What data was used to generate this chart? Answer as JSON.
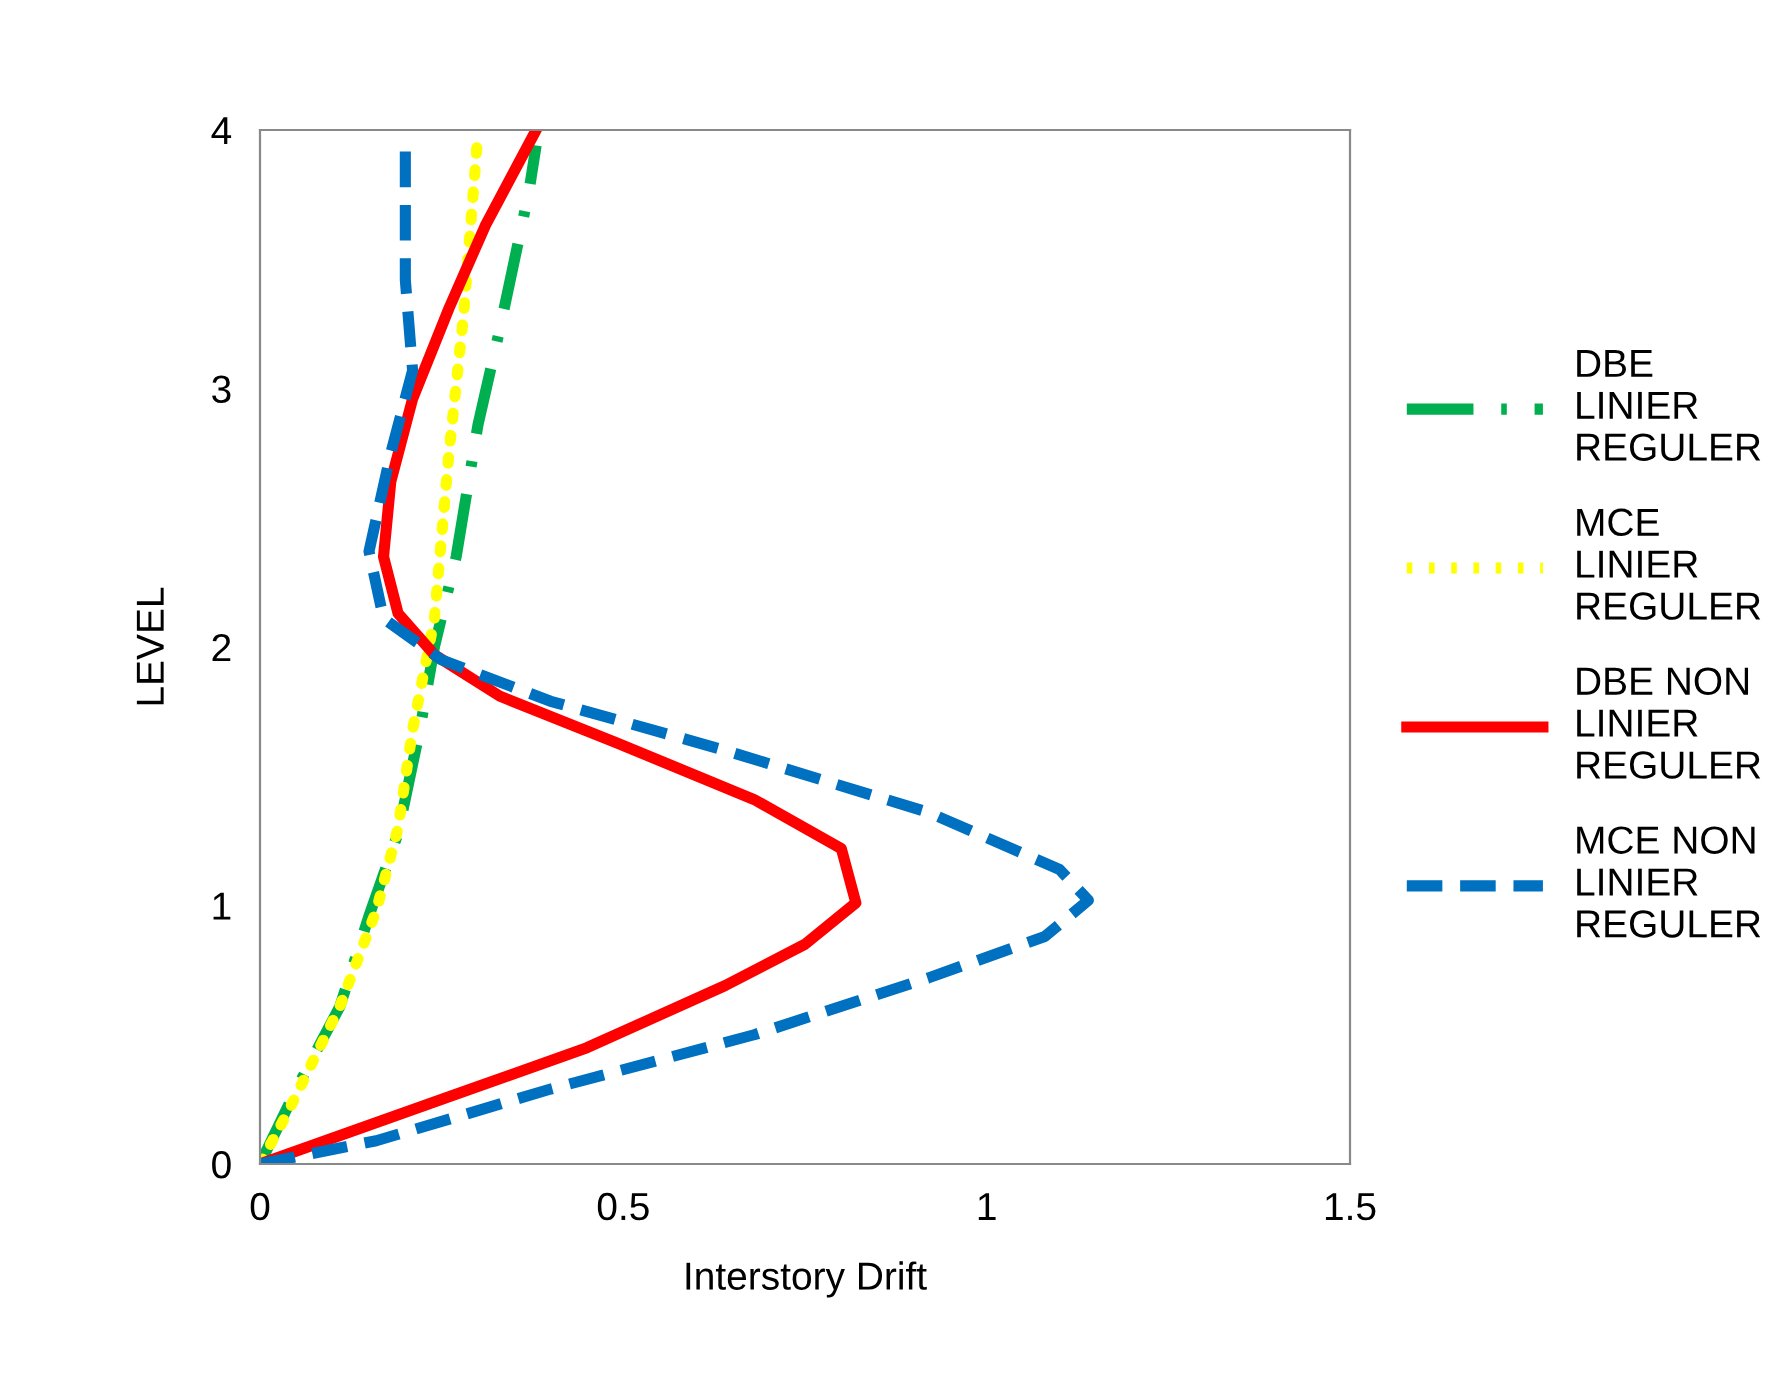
{
  "chart_data": {
    "type": "line",
    "xlabel": "Interstory Drift",
    "ylabel": "LEVEL",
    "xlim": [
      0,
      1.5
    ],
    "xticks": [
      0,
      0.5,
      1,
      1.5
    ],
    "ylim": [
      0,
      4
    ],
    "yticks": [
      0,
      1,
      2,
      3,
      4
    ],
    "grid": false,
    "legend": "right",
    "marker": "none",
    "series": [
      {
        "name": "DBE LINIER REGULER",
        "color": "#00b050",
        "line_style": "dashdot",
        "x": [
          0,
          0.05,
          0.11,
          0.15,
          0.19,
          0.22,
          0.24,
          0.27,
          0.3,
          0.33,
          0.37,
          0.38
        ],
        "values": [
          0,
          0.29,
          0.61,
          0.96,
          1.28,
          1.68,
          2.0,
          2.35,
          2.86,
          3.23,
          3.76,
          3.94
        ]
      },
      {
        "name": "MCE LINIER REGULER",
        "color": "#ffff00",
        "line_style": "dotted",
        "x": [
          0,
          0.04,
          0.11,
          0.16,
          0.19,
          0.21,
          0.24,
          0.26,
          0.28,
          0.3
        ],
        "values": [
          0,
          0.21,
          0.61,
          0.98,
          1.3,
          1.68,
          2.11,
          2.75,
          3.28,
          3.99
        ]
      },
      {
        "name": "DBE NON LINIER REGULER",
        "color": "#ff0000",
        "line_style": "solid",
        "x": [
          0,
          0.26,
          0.45,
          0.64,
          0.75,
          0.82,
          0.8,
          0.68,
          0.49,
          0.33,
          0.24,
          0.19,
          0.17,
          0.18,
          0.21,
          0.26,
          0.31,
          0.38
        ],
        "values": [
          0,
          0.26,
          0.45,
          0.69,
          0.85,
          1.01,
          1.22,
          1.41,
          1.63,
          1.81,
          1.97,
          2.13,
          2.35,
          2.64,
          2.96,
          3.31,
          3.63,
          4.0
        ]
      },
      {
        "name": "MCE NON LINIER REGULER",
        "color": "#0070c0",
        "line_style": "dashed",
        "x": [
          0,
          0.16,
          0.4,
          0.68,
          0.92,
          1.08,
          1.14,
          1.1,
          0.92,
          0.64,
          0.4,
          0.25,
          0.17,
          0.15,
          0.18,
          0.21,
          0.2,
          0.2
        ],
        "values": [
          0,
          0.09,
          0.29,
          0.5,
          0.72,
          0.88,
          1.02,
          1.14,
          1.36,
          1.6,
          1.79,
          1.95,
          2.11,
          2.37,
          2.75,
          3.07,
          3.42,
          3.95
        ]
      }
    ]
  }
}
